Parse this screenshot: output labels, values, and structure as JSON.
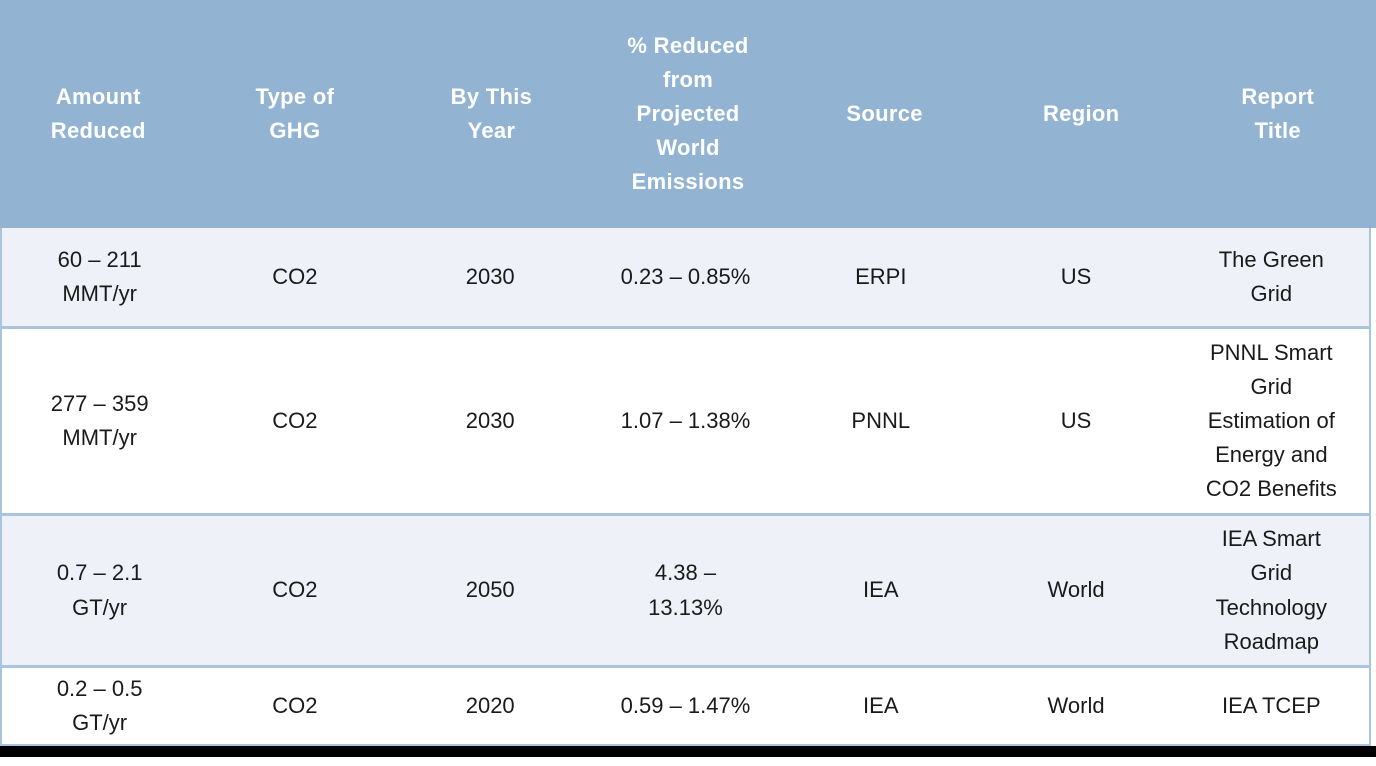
{
  "chart_data": {
    "type": "table",
    "title": "Smart grid greenhouse-gas reduction estimates",
    "columns": [
      "Amount Reduced",
      "Type of GHG",
      "By This Year",
      "% Reduced from Projected World Emissions",
      "Source",
      "Region",
      "Report Title"
    ],
    "rows": [
      [
        "60 – 211 MMT/yr",
        "CO2",
        "2030",
        "0.23 – 0.85%",
        "ERPI",
        "US",
        "The Green Grid"
      ],
      [
        "277 – 359 MMT/yr",
        "CO2",
        "2030",
        "1.07 – 1.38%",
        "PNNL",
        "US",
        "PNNL Smart Grid Estimation of Energy and CO2 Benefits"
      ],
      [
        "0.7 – 2.1 GT/yr",
        "CO2",
        "2050",
        "4.38 – 13.13%",
        "IEA",
        "World",
        "IEA Smart Grid Technology Roadmap"
      ],
      [
        "0.2 – 0.5 GT/yr",
        "CO2",
        "2020",
        "0.59 – 1.47%",
        "IEA",
        "World",
        "IEA TCEP"
      ]
    ],
    "layout": {
      "header_position": "top",
      "grid": "horizontal-row-separators-only",
      "row_striping": [
        "tinted",
        "white",
        "tinted",
        "white"
      ]
    }
  },
  "header": {
    "amount": "Amount\nReduced",
    "ghg": "Type of\nGHG",
    "year": "By This\nYear",
    "pct": "% Reduced\nfrom\nProjected\nWorld\nEmissions",
    "source": "Source",
    "region": "Region",
    "title": "Report\nTitle"
  },
  "rows": [
    {
      "amount": "60 – 211\nMMT/yr",
      "ghg": "CO2",
      "year": "2030",
      "pct": "0.23 – 0.85%",
      "source": "ERPI",
      "region": "US",
      "title": "The Green\nGrid"
    },
    {
      "amount": "277 – 359\nMMT/yr",
      "ghg": "CO2",
      "year": "2030",
      "pct": "1.07 – 1.38%",
      "source": "PNNL",
      "region": "US",
      "title": "PNNL Smart\nGrid\nEstimation of\nEnergy and\nCO2 Benefits"
    },
    {
      "amount": "0.7 – 2.1\nGT/yr",
      "ghg": "CO2",
      "year": "2050",
      "pct": "4.38 –\n13.13%",
      "source": "IEA",
      "region": "World",
      "title": "IEA Smart\nGrid\nTechnology\nRoadmap"
    },
    {
      "amount": "0.2 – 0.5\nGT/yr",
      "ghg": "CO2",
      "year": "2020",
      "pct": "0.59 – 1.47%",
      "source": "IEA",
      "region": "World",
      "title": "IEA TCEP"
    }
  ],
  "colors": {
    "header_bg": "#92b4d2",
    "header_text": "#ffffff",
    "row_tinted_bg": "#eef1f7",
    "row_white_bg": "#ffffff",
    "row_border": "#a9c5de",
    "body_text": "#1a1a1a",
    "bottom_bar": "#000000"
  }
}
